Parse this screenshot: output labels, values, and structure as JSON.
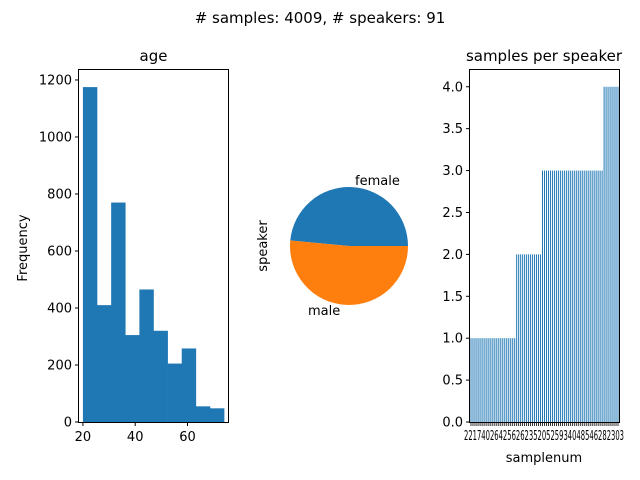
{
  "suptitle": "# samples: 4009, # speakers: 91",
  "colors": {
    "blue": "#1f77b4",
    "orange": "#ff7f0e"
  },
  "chart_data": [
    {
      "type": "bar",
      "title": "age",
      "xlabel": "",
      "ylabel": "Frequency",
      "bin_edges": [
        20.0,
        25.4,
        30.8,
        36.2,
        41.6,
        47.0,
        52.4,
        57.8,
        63.2,
        68.6,
        74.0
      ],
      "values": [
        1175,
        410,
        770,
        305,
        465,
        320,
        205,
        258,
        55,
        48
      ],
      "xlim": [
        18.5,
        75.5
      ],
      "ylim": [
        0,
        1235
      ],
      "xticks": [
        20,
        40,
        60
      ],
      "yticks": [
        0,
        200,
        400,
        600,
        800,
        1000,
        1200
      ]
    },
    {
      "type": "pie",
      "title": "",
      "ylabel": "speaker",
      "labels": [
        "female",
        "male"
      ],
      "values": [
        48.5,
        51.5
      ]
    },
    {
      "type": "bar",
      "title": "samples per speaker",
      "xlabel": "samplenum",
      "ylabel": "",
      "ylim": [
        0,
        4.2
      ],
      "yticks": [
        0.0,
        0.5,
        1.0,
        1.5,
        2.0,
        2.5,
        3.0,
        3.5,
        4.0
      ],
      "tick_text": "2217402642562623520525934048546282303",
      "values": [
        1,
        1,
        1,
        1,
        1,
        1,
        1,
        1,
        1,
        1,
        1,
        1,
        1,
        1,
        1,
        1,
        1,
        1,
        1,
        1,
        1,
        1,
        1,
        2,
        2,
        2,
        2,
        2,
        2,
        2,
        2,
        2,
        2,
        2,
        2,
        2,
        3,
        3,
        3,
        3,
        3,
        3,
        3,
        3,
        3,
        3,
        3,
        3,
        3,
        3,
        3,
        3,
        3,
        3,
        3,
        3,
        3,
        3,
        3,
        3,
        3,
        3,
        3,
        3,
        3,
        3,
        3,
        4,
        4,
        4,
        4,
        4,
        4,
        4,
        4
      ]
    }
  ]
}
